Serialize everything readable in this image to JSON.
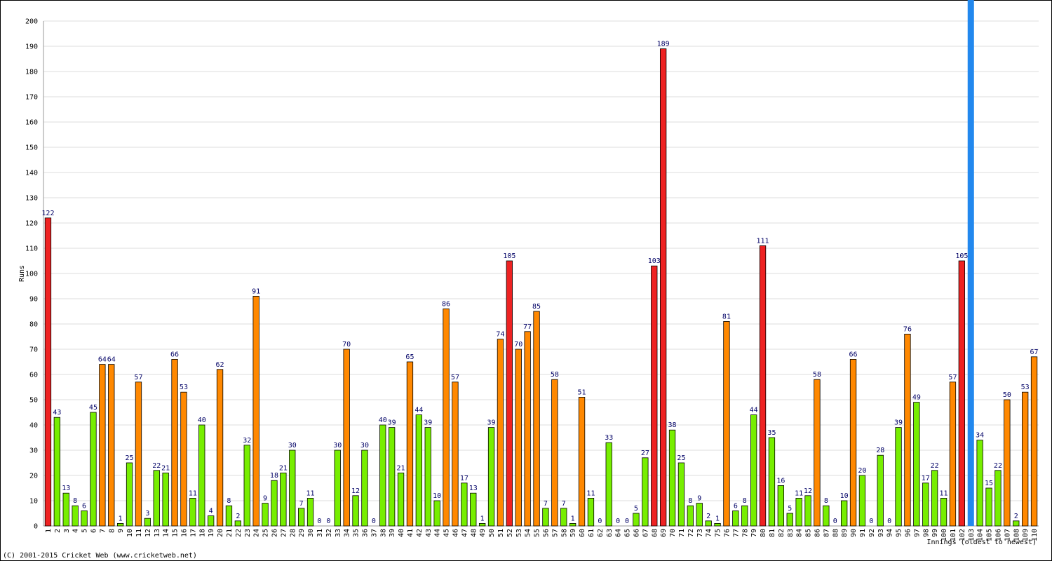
{
  "chart_data": {
    "type": "bar",
    "y_label": "Runs",
    "x_label": "Innings (oldest to newest)",
    "footer": "(C) 2001-2015 Cricket Web (www.cricketweb.net)",
    "categories": [
      1,
      2,
      3,
      4,
      5,
      6,
      7,
      8,
      9,
      10,
      11,
      12,
      13,
      14,
      15,
      16,
      17,
      18,
      19,
      20,
      21,
      22,
      23,
      24,
      25,
      26,
      27,
      28,
      29,
      30,
      31,
      32,
      33,
      34,
      35,
      36,
      37,
      38,
      39,
      40,
      41,
      42,
      43,
      44,
      45,
      46,
      47,
      48,
      49,
      50,
      51,
      52,
      53,
      54,
      55,
      56,
      57,
      58,
      59,
      60,
      61,
      62,
      63,
      64,
      65,
      66,
      67,
      68,
      69,
      70,
      71,
      72,
      73,
      74,
      75,
      76,
      77,
      78,
      79,
      80,
      81,
      82,
      83,
      84,
      85,
      86,
      87,
      88,
      89,
      90,
      91,
      92,
      93,
      94,
      95,
      96,
      97,
      98,
      99,
      100,
      101,
      102,
      103,
      104,
      105,
      106,
      107,
      108,
      109,
      110
    ],
    "values": [
      122,
      43,
      13,
      8,
      6,
      45,
      64,
      64,
      1,
      25,
      57,
      3,
      22,
      21,
      66,
      53,
      11,
      40,
      4,
      62,
      8,
      2,
      32,
      91,
      9,
      18,
      21,
      30,
      7,
      11,
      0,
      0,
      30,
      70,
      12,
      30,
      0,
      40,
      39,
      21,
      65,
      44,
      39,
      10,
      86,
      57,
      17,
      13,
      1,
      39,
      74,
      105,
      70,
      77,
      85,
      7,
      58,
      7,
      1,
      51,
      11,
      0,
      33,
      0,
      0,
      5,
      27,
      103,
      189,
      38,
      25,
      8,
      9,
      2,
      1,
      81,
      6,
      8,
      44,
      111,
      35,
      16,
      5,
      11,
      12,
      58,
      8,
      0,
      10,
      66,
      20,
      0,
      28,
      0,
      39,
      76,
      49,
      17,
      22,
      11,
      57,
      105,
      null,
      34,
      15,
      22,
      50,
      2,
      53,
      67
    ],
    "colors": [
      "#e22",
      "#7e0",
      "#7e0",
      "#7e0",
      "#7e0",
      "#7e0",
      "#f80",
      "#f80",
      "#7e0",
      "#7e0",
      "#f80",
      "#7e0",
      "#7e0",
      "#7e0",
      "#f80",
      "#f80",
      "#7e0",
      "#7e0",
      "#7e0",
      "#f80",
      "#7e0",
      "#7e0",
      "#7e0",
      "#f80",
      "#7e0",
      "#7e0",
      "#7e0",
      "#7e0",
      "#7e0",
      "#7e0",
      "#7e0",
      "#7e0",
      "#7e0",
      "#f80",
      "#7e0",
      "#7e0",
      "#7e0",
      "#7e0",
      "#7e0",
      "#7e0",
      "#f80",
      "#7e0",
      "#7e0",
      "#7e0",
      "#f80",
      "#f80",
      "#7e0",
      "#7e0",
      "#7e0",
      "#7e0",
      "#f80",
      "#e22",
      "#f80",
      "#f80",
      "#f80",
      "#7e0",
      "#f80",
      "#7e0",
      "#7e0",
      "#f80",
      "#7e0",
      "#7e0",
      "#7e0",
      "#7e0",
      "#7e0",
      "#7e0",
      "#7e0",
      "#e22",
      "#e22",
      "#7e0",
      "#7e0",
      "#7e0",
      "#7e0",
      "#7e0",
      "#7e0",
      "#f80",
      "#7e0",
      "#7e0",
      "#7e0",
      "#e22",
      "#7e0",
      "#7e0",
      "#7e0",
      "#7e0",
      "#7e0",
      "#f80",
      "#7e0",
      "#7e0",
      "#7e0",
      "#f80",
      "#7e0",
      "#7e0",
      "#7e0",
      "#7e0",
      "#7e0",
      "#f80",
      "#7e0",
      "#7e0",
      "#7e0",
      "#7e0",
      "#f80",
      "#e22",
      "#28e",
      "#7e0",
      "#7e0",
      "#7e0",
      "#f80",
      "#7e0",
      "#f80",
      "#f80"
    ],
    "ylim": [
      0,
      200
    ],
    "yticks": [
      0,
      10,
      20,
      30,
      40,
      50,
      60,
      70,
      80,
      90,
      100,
      110,
      120,
      130,
      140,
      150,
      160,
      170,
      180,
      190,
      200
    ],
    "grid": true
  }
}
